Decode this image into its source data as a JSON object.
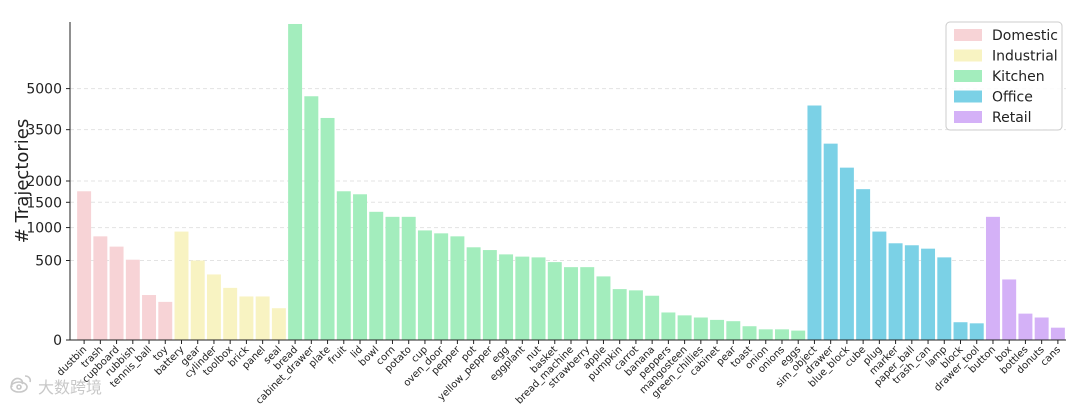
{
  "chart_data": {
    "type": "bar",
    "xlabel": "",
    "ylabel": "# Trajectories",
    "yscale": "sqrt",
    "ylim": [
      0,
      8000
    ],
    "yticks": [
      0,
      500,
      1000,
      1500,
      2000,
      3500,
      5000
    ],
    "grid": "horizontal-dashed",
    "legend_position": "top-right",
    "groups": [
      {
        "name": "Domestic",
        "color": "#f7d3d6"
      },
      {
        "name": "Industrial",
        "color": "#f8f3c2"
      },
      {
        "name": "Kitchen",
        "color": "#a3edbd"
      },
      {
        "name": "Office",
        "color": "#7bd1e6"
      },
      {
        "name": "Retail",
        "color": "#d4b1f7"
      }
    ],
    "bars": [
      {
        "label": "dustbin",
        "value": 1750,
        "group": "Domestic"
      },
      {
        "label": "trash",
        "value": 850,
        "group": "Domestic"
      },
      {
        "label": "cupboard",
        "value": 690,
        "group": "Domestic"
      },
      {
        "label": "rubbish",
        "value": 510,
        "group": "Domestic"
      },
      {
        "label": "tennis_ball",
        "value": 160,
        "group": "Domestic"
      },
      {
        "label": "toy",
        "value": 115,
        "group": "Domestic"
      },
      {
        "label": "battery",
        "value": 930,
        "group": "Industrial"
      },
      {
        "label": "gear",
        "value": 500,
        "group": "Industrial"
      },
      {
        "label": "cylinder",
        "value": 340,
        "group": "Industrial"
      },
      {
        "label": "toolbox",
        "value": 215,
        "group": "Industrial"
      },
      {
        "label": "brick",
        "value": 150,
        "group": "Industrial"
      },
      {
        "label": "panel",
        "value": 150,
        "group": "Industrial"
      },
      {
        "label": "seal",
        "value": 80,
        "group": "Industrial"
      },
      {
        "label": "bread",
        "value": 7900,
        "group": "Kitchen"
      },
      {
        "label": "cabinet_drawer",
        "value": 4700,
        "group": "Kitchen"
      },
      {
        "label": "plate",
        "value": 3900,
        "group": "Kitchen"
      },
      {
        "label": "fruit",
        "value": 1750,
        "group": "Kitchen"
      },
      {
        "label": "lid",
        "value": 1680,
        "group": "Kitchen"
      },
      {
        "label": "bowl",
        "value": 1300,
        "group": "Kitchen"
      },
      {
        "label": "corn",
        "value": 1200,
        "group": "Kitchen"
      },
      {
        "label": "potato",
        "value": 1200,
        "group": "Kitchen"
      },
      {
        "label": "cup",
        "value": 950,
        "group": "Kitchen"
      },
      {
        "label": "oven_door",
        "value": 900,
        "group": "Kitchen"
      },
      {
        "label": "pepper",
        "value": 850,
        "group": "Kitchen"
      },
      {
        "label": "pot",
        "value": 680,
        "group": "Kitchen"
      },
      {
        "label": "yellow_pepper",
        "value": 640,
        "group": "Kitchen"
      },
      {
        "label": "egg",
        "value": 580,
        "group": "Kitchen"
      },
      {
        "label": "eggplant",
        "value": 550,
        "group": "Kitchen"
      },
      {
        "label": "nut",
        "value": 540,
        "group": "Kitchen"
      },
      {
        "label": "basket",
        "value": 480,
        "group": "Kitchen"
      },
      {
        "label": "bread_machine",
        "value": 420,
        "group": "Kitchen"
      },
      {
        "label": "strawberry",
        "value": 420,
        "group": "Kitchen"
      },
      {
        "label": "apple",
        "value": 320,
        "group": "Kitchen"
      },
      {
        "label": "pumpkin",
        "value": 205,
        "group": "Kitchen"
      },
      {
        "label": "carrot",
        "value": 195,
        "group": "Kitchen"
      },
      {
        "label": "banana",
        "value": 155,
        "group": "Kitchen"
      },
      {
        "label": "peppers",
        "value": 60,
        "group": "Kitchen"
      },
      {
        "label": "mangosteen",
        "value": 48,
        "group": "Kitchen"
      },
      {
        "label": "green_chillies",
        "value": 40,
        "group": "Kitchen"
      },
      {
        "label": "cabinet",
        "value": 32,
        "group": "Kitchen"
      },
      {
        "label": "pear",
        "value": 28,
        "group": "Kitchen"
      },
      {
        "label": "toast",
        "value": 15,
        "group": "Kitchen"
      },
      {
        "label": "onion",
        "value": 9,
        "group": "Kitchen"
      },
      {
        "label": "onions",
        "value": 9,
        "group": "Kitchen"
      },
      {
        "label": "eggs",
        "value": 7,
        "group": "Kitchen"
      },
      {
        "label": "sim_object",
        "value": 4350,
        "group": "Office"
      },
      {
        "label": "drawer",
        "value": 3050,
        "group": "Office"
      },
      {
        "label": "blue_block",
        "value": 2350,
        "group": "Office"
      },
      {
        "label": "cube",
        "value": 1800,
        "group": "Office"
      },
      {
        "label": "plug",
        "value": 930,
        "group": "Office"
      },
      {
        "label": "marker",
        "value": 740,
        "group": "Office"
      },
      {
        "label": "paper_ball",
        "value": 710,
        "group": "Office"
      },
      {
        "label": "trash_can",
        "value": 660,
        "group": "Office"
      },
      {
        "label": "lamp",
        "value": 540,
        "group": "Office"
      },
      {
        "label": "block",
        "value": 25,
        "group": "Office"
      },
      {
        "label": "drawer_tool",
        "value": 22,
        "group": "Office"
      },
      {
        "label": "button",
        "value": 1200,
        "group": "Retail"
      },
      {
        "label": "box",
        "value": 290,
        "group": "Retail"
      },
      {
        "label": "bottles",
        "value": 55,
        "group": "Retail"
      },
      {
        "label": "donuts",
        "value": 40,
        "group": "Retail"
      },
      {
        "label": "cans",
        "value": 12,
        "group": "Retail"
      }
    ]
  },
  "watermark": {
    "text": "大数跨境",
    "icon": "weibo-logo-icon"
  }
}
